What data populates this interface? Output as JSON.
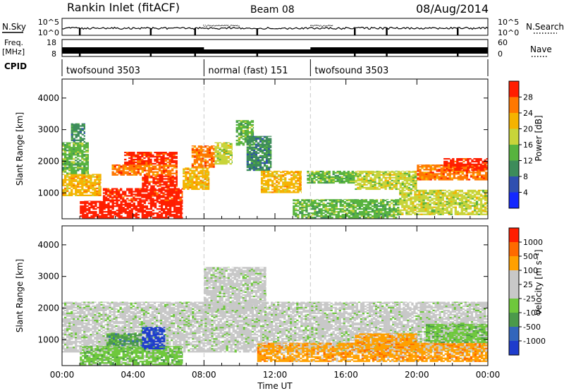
{
  "header": {
    "station": "Rankin Inlet (fitACF)",
    "beam": "Beam 08",
    "date": "08/Aug/2014"
  },
  "info_panels": {
    "nsky_label": "N.Sky",
    "nsky_ticks": [
      "10^5",
      "10^0"
    ],
    "nsearch_label": "N.Search",
    "nsearch_ticks": [
      "10^5",
      "10^0"
    ],
    "freq_label": "Freq.",
    "freq_unit": "[MHz]",
    "freq_ticks": [
      "18",
      "8"
    ],
    "nave_label": "Nave",
    "nave_ticks": [
      "60",
      "0"
    ],
    "cpid_label": "CPID",
    "cpid_segments": [
      {
        "label": "twofsound 3503",
        "start_hour": 0,
        "end_hour": 8
      },
      {
        "label": "normal (fast) 151",
        "start_hour": 8,
        "end_hour": 14
      },
      {
        "label": "twofsound 3503",
        "start_hour": 14,
        "end_hour": 24
      }
    ]
  },
  "chart_data": [
    {
      "type": "heatmap",
      "title": "Power",
      "xlabel": "Time UT",
      "ylabel": "Slant Range [km]",
      "x_ticks": [
        "00:00",
        "04:00",
        "08:00",
        "12:00",
        "16:00",
        "20:00",
        "00:00"
      ],
      "xlim_hours": [
        0,
        24
      ],
      "y_ticks": [
        1000,
        2000,
        3000,
        4000
      ],
      "ylim_km": [
        180,
        4600
      ],
      "colorbar_label": "Power [dB]",
      "colorbar_ticks": [
        "4",
        "8",
        "12",
        "16",
        "20",
        "24",
        "28"
      ],
      "colorbar_colors": [
        "#1428ff",
        "#2f4fb0",
        "#3d8c5a",
        "#57b33e",
        "#c8d43a",
        "#f5b300",
        "#ff7800",
        "#ff1e00"
      ],
      "cpid_change_hours": [
        8,
        14
      ],
      "regions": [
        {
          "t0": 1.0,
          "t1": 6.8,
          "r0": 200,
          "r1": 750,
          "level": 8
        },
        {
          "t0": 2.3,
          "t1": 6.8,
          "r0": 750,
          "r1": 1150,
          "level": 7
        },
        {
          "t0": 4.5,
          "t1": 6.5,
          "r0": 1150,
          "r1": 1550,
          "level": 7
        },
        {
          "t0": 2.8,
          "t1": 6.5,
          "r0": 1550,
          "r1": 1900,
          "level": 6
        },
        {
          "t0": 3.5,
          "t1": 6.5,
          "r0": 1900,
          "r1": 2300,
          "level": 7
        },
        {
          "t0": 0.0,
          "t1": 2.2,
          "r0": 900,
          "r1": 1600,
          "level": 5
        },
        {
          "t0": 0.0,
          "t1": 1.5,
          "r0": 1600,
          "r1": 2600,
          "level": 3
        },
        {
          "t0": 0.5,
          "t1": 1.3,
          "r0": 2600,
          "r1": 3200,
          "level": 2
        },
        {
          "t0": 6.8,
          "t1": 8.3,
          "r0": 1100,
          "r1": 1800,
          "level": 5
        },
        {
          "t0": 7.3,
          "t1": 8.6,
          "r0": 1800,
          "r1": 2500,
          "level": 6
        },
        {
          "t0": 8.6,
          "t1": 9.6,
          "r0": 1900,
          "r1": 2600,
          "level": 4
        },
        {
          "t0": 9.8,
          "t1": 10.8,
          "r0": 2500,
          "r1": 3300,
          "level": 3
        },
        {
          "t0": 10.4,
          "t1": 11.8,
          "r0": 1700,
          "r1": 2800,
          "level": 2
        },
        {
          "t0": 11.2,
          "t1": 13.5,
          "r0": 1000,
          "r1": 1700,
          "level": 5
        },
        {
          "t0": 13.8,
          "t1": 16.5,
          "r0": 1300,
          "r1": 1700,
          "level": 3
        },
        {
          "t0": 16.5,
          "t1": 20.0,
          "r0": 1100,
          "r1": 1700,
          "level": 4
        },
        {
          "t0": 20.0,
          "t1": 24.0,
          "r0": 1400,
          "r1": 1900,
          "level": 6
        },
        {
          "t0": 21.5,
          "t1": 24.0,
          "r0": 1700,
          "r1": 2100,
          "level": 7
        },
        {
          "t0": 19.0,
          "t1": 24.0,
          "r0": 300,
          "r1": 1100,
          "level": 4
        },
        {
          "t0": 13.0,
          "t1": 19.0,
          "r0": 200,
          "r1": 800,
          "level": 3
        }
      ]
    },
    {
      "type": "heatmap",
      "title": "Velocity",
      "xlabel": "Time UT",
      "ylabel": "Slant Range [km]",
      "x_ticks": [
        "00:00",
        "04:00",
        "08:00",
        "12:00",
        "16:00",
        "20:00",
        "00:00"
      ],
      "xlim_hours": [
        0,
        24
      ],
      "y_ticks": [
        1000,
        2000,
        3000,
        4000
      ],
      "ylim_km": [
        180,
        4600
      ],
      "colorbar_label": "Velocity [m s⁻¹]",
      "colorbar_ticks": [
        "1000",
        "500",
        "100",
        "25",
        "-25",
        "-100",
        "-500",
        "-1000"
      ],
      "colorbar_colors": [
        "#1e3ccc",
        "#3366bb",
        "#4b9a4b",
        "#6ec83c",
        "#c8c8c8",
        "#c8c8c8",
        "#ffa000",
        "#ff6a00",
        "#ff1e00"
      ],
      "cpid_change_hours": [
        8,
        14
      ],
      "regions": [
        {
          "t0": 0.0,
          "t1": 24.0,
          "r0": 600,
          "r1": 2200,
          "level": 4
        },
        {
          "t0": 1.0,
          "t1": 6.8,
          "r0": 200,
          "r1": 800,
          "level": 3
        },
        {
          "t0": 4.5,
          "t1": 5.8,
          "r0": 700,
          "r1": 1400,
          "level": 0
        },
        {
          "t0": 2.5,
          "t1": 4.5,
          "r0": 800,
          "r1": 1200,
          "level": 2
        },
        {
          "t0": 8.0,
          "t1": 11.5,
          "r0": 1900,
          "r1": 3300,
          "level": 4
        },
        {
          "t0": 11.0,
          "t1": 24.0,
          "r0": 300,
          "r1": 900,
          "level": 6
        },
        {
          "t0": 16.5,
          "t1": 20.0,
          "r0": 700,
          "r1": 1200,
          "level": 6
        },
        {
          "t0": 20.5,
          "t1": 24.0,
          "r0": 900,
          "r1": 1500,
          "level": 3
        }
      ]
    }
  ]
}
